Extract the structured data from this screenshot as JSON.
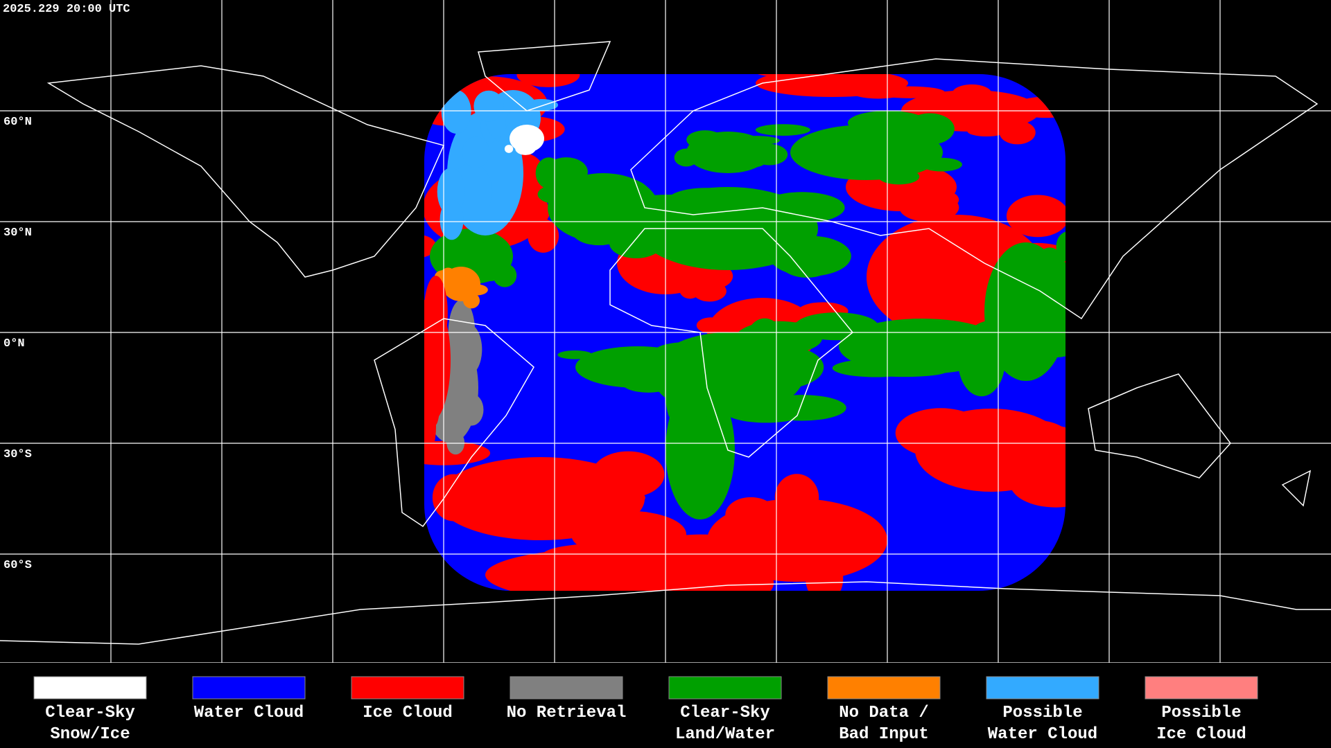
{
  "timestamp": "2025.229 20:00 UTC",
  "latitude_labels": [
    "60°N",
    "30°N",
    "0°N",
    "30°S",
    "60°S"
  ],
  "legend": [
    {
      "label": [
        "Clear-Sky",
        "Snow/Ice"
      ],
      "color": "#ffffff"
    },
    {
      "label": [
        "Water Cloud"
      ],
      "color": "#0000ff"
    },
    {
      "label": [
        "Ice Cloud"
      ],
      "color": "#ff0000"
    },
    {
      "label": [
        "No Retrieval"
      ],
      "color": "#808080"
    },
    {
      "label": [
        "Clear-Sky",
        "Land/Water"
      ],
      "color": "#00a000"
    },
    {
      "label": [
        "No Data /",
        "Bad Input"
      ],
      "color": "#ff8000"
    },
    {
      "label": [
        "Possible",
        "Water Cloud"
      ],
      "color": "#33aaff"
    },
    {
      "label": [
        "Possible",
        "Ice Cloud"
      ],
      "color": "#ff7f7f"
    }
  ]
}
